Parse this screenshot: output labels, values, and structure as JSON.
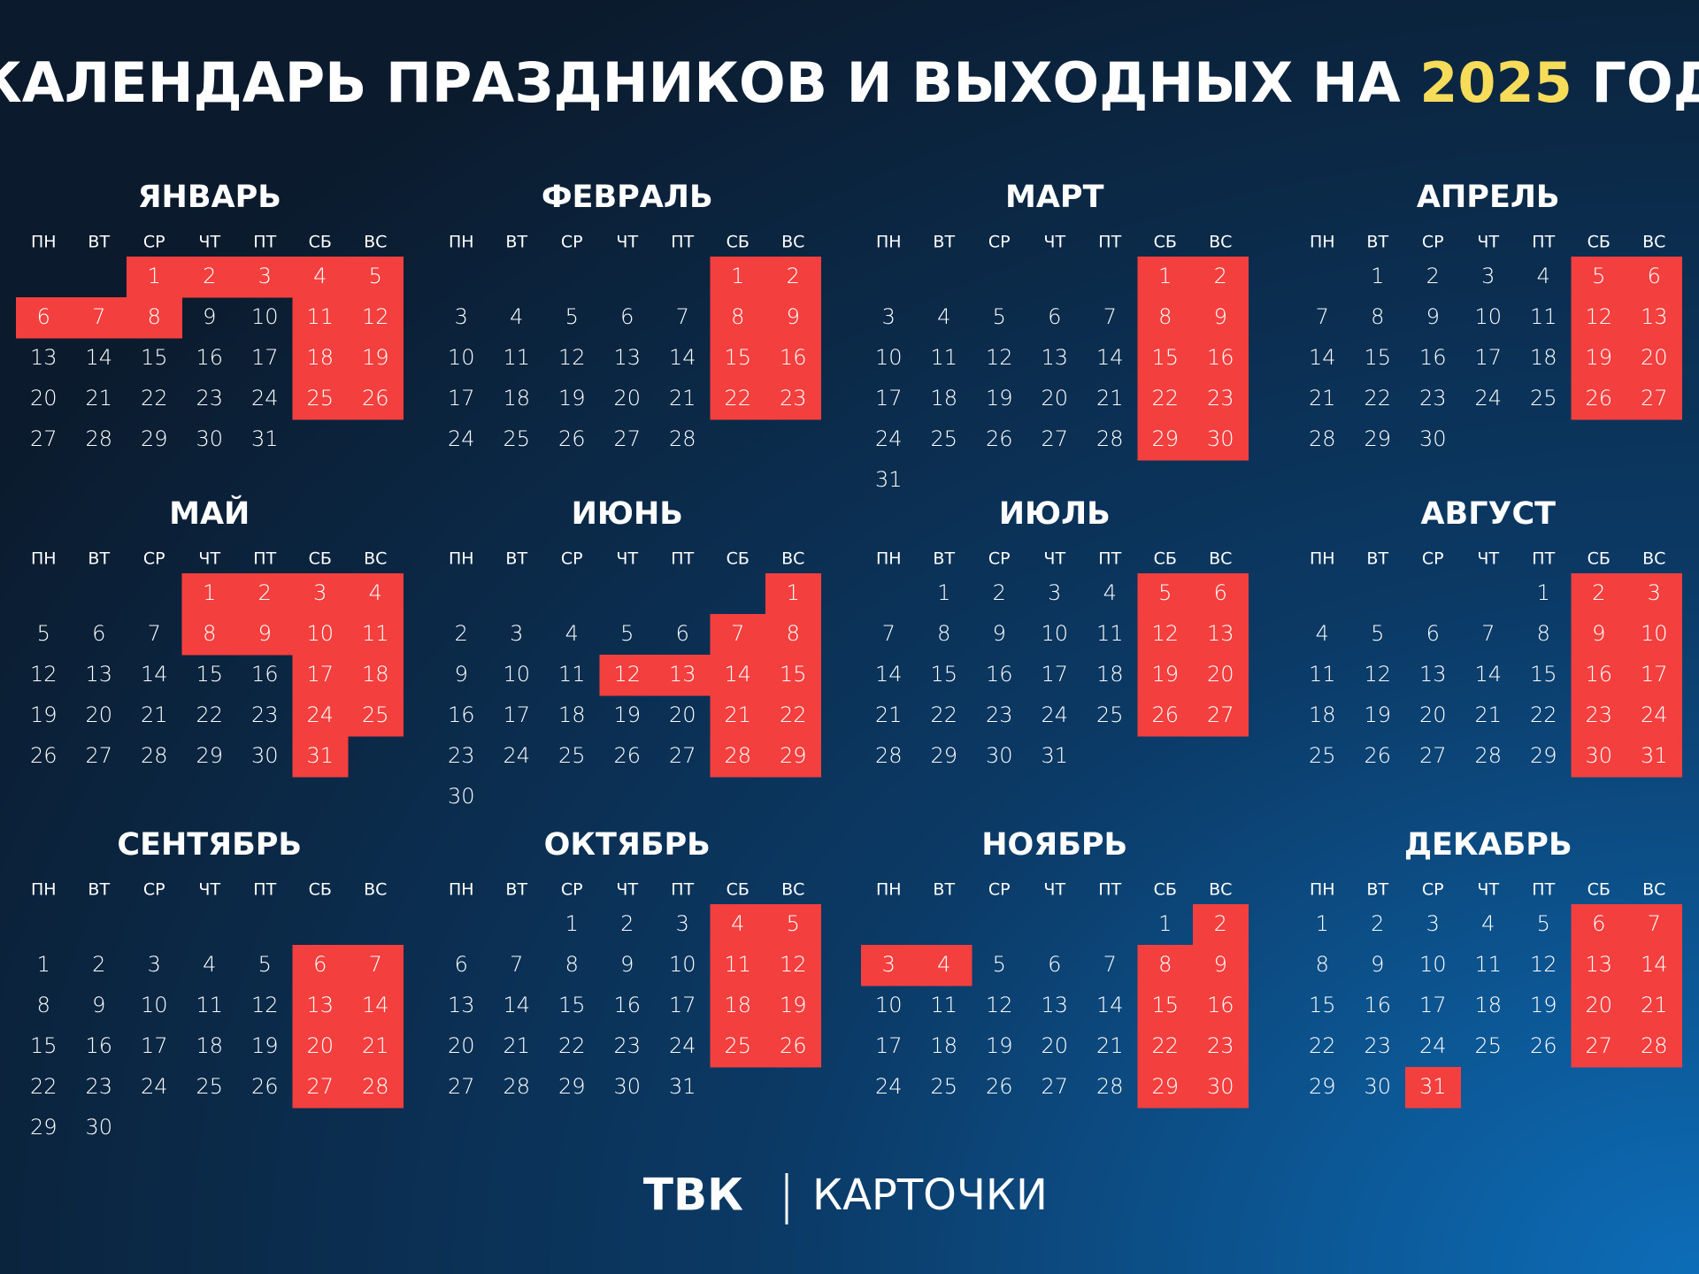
{
  "header": {
    "title": "КАЛЕНДАРЬ ПРАЗДНИКОВ И ВЫХОДНЫХ НА",
    "year": "2025",
    "suffix": "ГОД"
  },
  "weekdays": [
    "ПН",
    "ВТ",
    "СР",
    "ЧТ",
    "ПТ",
    "СБ",
    "ВС"
  ],
  "months": [
    {
      "name": "ЯНВАРЬ",
      "offset": 2,
      "days": [
        1,
        2,
        3,
        4,
        5,
        6,
        7,
        8,
        9,
        10,
        11,
        12,
        13,
        14,
        15,
        16,
        17,
        18,
        19,
        20,
        21,
        22,
        23,
        24,
        25,
        26,
        27,
        28,
        29,
        30,
        31
      ],
      "off": [
        1,
        2,
        3,
        4,
        5,
        6,
        7,
        8,
        11,
        12,
        18,
        19,
        25,
        26
      ]
    },
    {
      "name": "ФЕВРАЛЬ",
      "offset": 5,
      "days": [
        1,
        2,
        3,
        4,
        5,
        6,
        7,
        8,
        9,
        10,
        11,
        12,
        13,
        14,
        15,
        16,
        17,
        18,
        19,
        20,
        21,
        22,
        23,
        24,
        25,
        26,
        27,
        28
      ],
      "off": [
        1,
        2,
        8,
        9,
        15,
        16,
        22,
        23
      ]
    },
    {
      "name": "МАРТ",
      "offset": 5,
      "days": [
        1,
        2,
        3,
        4,
        5,
        6,
        7,
        8,
        9,
        10,
        11,
        12,
        13,
        14,
        15,
        16,
        17,
        18,
        19,
        20,
        21,
        22,
        23,
        24,
        25,
        26,
        27,
        28,
        29,
        30,
        31
      ],
      "off": [
        1,
        2,
        8,
        9,
        15,
        16,
        22,
        23,
        29,
        30
      ]
    },
    {
      "name": "АПРЕЛЬ",
      "offset": 1,
      "days": [
        1,
        2,
        3,
        4,
        5,
        6,
        7,
        8,
        9,
        10,
        11,
        12,
        13,
        14,
        15,
        16,
        17,
        18,
        19,
        20,
        21,
        22,
        23,
        24,
        25,
        26,
        27,
        28,
        29,
        30
      ],
      "off": [
        5,
        6,
        12,
        13,
        19,
        20,
        26,
        27
      ]
    },
    {
      "name": "МАЙ",
      "offset": 3,
      "days": [
        1,
        2,
        3,
        4,
        5,
        6,
        7,
        8,
        9,
        10,
        11,
        12,
        13,
        14,
        15,
        16,
        17,
        18,
        19,
        20,
        21,
        22,
        23,
        24,
        25,
        26,
        27,
        28,
        29,
        30,
        31
      ],
      "off": [
        1,
        2,
        3,
        4,
        8,
        9,
        10,
        11,
        17,
        18,
        24,
        25,
        31
      ]
    },
    {
      "name": "ИЮНЬ",
      "offset": 6,
      "days": [
        1,
        2,
        3,
        4,
        5,
        6,
        7,
        8,
        9,
        10,
        11,
        12,
        13,
        14,
        15,
        16,
        17,
        18,
        19,
        20,
        21,
        22,
        23,
        24,
        25,
        26,
        27,
        28,
        29,
        30
      ],
      "off": [
        1,
        7,
        8,
        12,
        13,
        14,
        15,
        21,
        22,
        28,
        29
      ]
    },
    {
      "name": "ИЮЛЬ",
      "offset": 1,
      "days": [
        1,
        2,
        3,
        4,
        5,
        6,
        7,
        8,
        9,
        10,
        11,
        12,
        13,
        14,
        15,
        16,
        17,
        18,
        19,
        20,
        21,
        22,
        23,
        24,
        25,
        26,
        27,
        28,
        29,
        30,
        31
      ],
      "off": [
        5,
        6,
        12,
        13,
        19,
        20,
        26,
        27
      ]
    },
    {
      "name": "АВГУСТ",
      "offset": 4,
      "days": [
        1,
        2,
        3,
        4,
        5,
        6,
        7,
        8,
        9,
        10,
        11,
        12,
        13,
        14,
        15,
        16,
        17,
        18,
        19,
        20,
        21,
        22,
        23,
        24,
        25,
        26,
        27,
        28,
        29,
        30,
        31
      ],
      "off": [
        2,
        3,
        9,
        10,
        16,
        17,
        23,
        24,
        30,
        31
      ]
    },
    {
      "name": "СЕНТЯБРЬ",
      "offset": 7,
      "days": [
        1,
        2,
        3,
        4,
        5,
        6,
        7,
        8,
        9,
        10,
        11,
        12,
        13,
        14,
        15,
        16,
        17,
        18,
        19,
        20,
        21,
        22,
        23,
        24,
        25,
        26,
        27,
        28,
        29,
        30
      ],
      "off": [
        6,
        7,
        13,
        14,
        20,
        21,
        27,
        28
      ]
    },
    {
      "name": "ОКТЯБРЬ",
      "offset": 2,
      "days": [
        1,
        2,
        3,
        4,
        5,
        6,
        7,
        8,
        9,
        10,
        11,
        12,
        13,
        14,
        15,
        16,
        17,
        18,
        19,
        20,
        21,
        22,
        23,
        24,
        25,
        26,
        27,
        28,
        29,
        30,
        31
      ],
      "off": [
        4,
        5,
        11,
        12,
        18,
        19,
        25,
        26
      ]
    },
    {
      "name": "НОЯБРЬ",
      "offset": 5,
      "days": [
        1,
        2,
        3,
        4,
        5,
        6,
        7,
        8,
        9,
        10,
        11,
        12,
        13,
        14,
        15,
        16,
        17,
        18,
        19,
        20,
        21,
        22,
        23,
        24,
        25,
        26,
        27,
        28,
        29,
        30
      ],
      "off": [
        2,
        3,
        4,
        8,
        9,
        15,
        16,
        22,
        23,
        29,
        30
      ]
    },
    {
      "name": "ДЕКАБРЬ",
      "offset": 0,
      "days": [
        1,
        2,
        3,
        4,
        5,
        6,
        7,
        8,
        9,
        10,
        11,
        12,
        13,
        14,
        15,
        16,
        17,
        18,
        19,
        20,
        21,
        22,
        23,
        24,
        25,
        26,
        27,
        28,
        29,
        30,
        31
      ],
      "off": [
        6,
        7,
        13,
        14,
        20,
        21,
        27,
        28,
        31
      ]
    }
  ],
  "footer": {
    "brand": "ТВК",
    "section": "КАРТОЧКИ"
  }
}
